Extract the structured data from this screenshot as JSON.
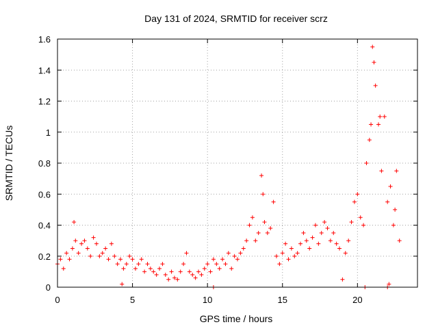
{
  "chart_data": {
    "type": "scatter",
    "title": "Day 131 of 2024, SRMTID for receiver scrz",
    "xlabel": "GPS time / hours",
    "ylabel": "SRMTID / TECUs",
    "xlim": [
      0,
      24
    ],
    "ylim": [
      0,
      1.6
    ],
    "xticks": [
      0,
      5,
      10,
      15,
      20
    ],
    "xtick_labels": [
      "0",
      "5",
      "10",
      "15",
      "20"
    ],
    "yticks": [
      0,
      0.2,
      0.4,
      0.6,
      0.8,
      1,
      1.2,
      1.4,
      1.6
    ],
    "ytick_labels": [
      "0",
      "0.2",
      "0.4",
      "0.6",
      "0.8",
      "1",
      "1.2",
      "1.4",
      "1.6"
    ],
    "grid": true,
    "marker": "+",
    "color": "#ff0000",
    "series": [
      {
        "name": "SRMTID",
        "x": [
          0.0,
          0.2,
          0.4,
          0.6,
          0.8,
          1.0,
          1.1,
          1.2,
          1.4,
          1.6,
          1.8,
          2.0,
          2.2,
          2.4,
          2.6,
          2.8,
          3.0,
          3.2,
          3.4,
          3.6,
          3.8,
          4.0,
          4.2,
          4.3,
          4.4,
          4.6,
          4.8,
          5.0,
          5.2,
          5.4,
          5.6,
          5.8,
          6.0,
          6.2,
          6.4,
          6.6,
          6.8,
          7.0,
          7.2,
          7.4,
          7.6,
          7.8,
          8.0,
          8.2,
          8.4,
          8.6,
          8.8,
          9.0,
          9.2,
          9.4,
          9.6,
          9.8,
          10.0,
          10.2,
          10.4,
          10.6,
          10.8,
          11.0,
          11.2,
          11.4,
          11.6,
          11.8,
          12.0,
          12.2,
          12.4,
          12.6,
          12.8,
          13.0,
          13.2,
          13.4,
          13.6,
          13.7,
          13.8,
          14.0,
          14.2,
          14.4,
          14.6,
          14.8,
          15.0,
          15.2,
          15.4,
          15.6,
          15.8,
          16.0,
          16.2,
          16.4,
          16.6,
          16.8,
          17.0,
          17.2,
          17.4,
          17.6,
          17.8,
          18.0,
          18.2,
          18.4,
          18.6,
          18.8,
          19.0,
          19.2,
          19.4,
          19.6,
          19.8,
          20.0,
          20.2,
          20.4,
          20.6,
          20.8,
          20.9,
          21.0,
          21.1,
          21.2,
          21.4,
          21.5,
          21.6,
          21.8,
          22.0,
          22.1,
          22.2,
          22.4,
          22.5,
          22.6,
          22.8
        ],
        "y": [
          0.15,
          0.18,
          0.12,
          0.22,
          0.18,
          0.25,
          0.42,
          0.3,
          0.22,
          0.28,
          0.3,
          0.25,
          0.2,
          0.32,
          0.28,
          0.2,
          0.22,
          0.25,
          0.18,
          0.28,
          0.2,
          0.15,
          0.18,
          0.02,
          0.12,
          0.15,
          0.2,
          0.18,
          0.12,
          0.15,
          0.18,
          0.1,
          0.15,
          0.12,
          0.1,
          0.08,
          0.12,
          0.15,
          0.08,
          0.05,
          0.1,
          0.06,
          0.05,
          0.1,
          0.15,
          0.22,
          0.1,
          0.08,
          0.06,
          0.1,
          0.08,
          0.12,
          0.15,
          0.1,
          0.18,
          0.15,
          0.12,
          0.18,
          0.15,
          0.22,
          0.12,
          0.2,
          0.18,
          0.22,
          0.25,
          0.3,
          0.4,
          0.45,
          0.3,
          0.35,
          0.72,
          0.6,
          0.42,
          0.35,
          0.38,
          0.55,
          0.2,
          0.15,
          0.22,
          0.28,
          0.18,
          0.25,
          0.2,
          0.22,
          0.28,
          0.35,
          0.3,
          0.25,
          0.32,
          0.4,
          0.28,
          0.35,
          0.42,
          0.38,
          0.3,
          0.35,
          0.28,
          0.25,
          0.05,
          0.22,
          0.3,
          0.42,
          0.55,
          0.6,
          0.45,
          0.4,
          0.8,
          0.95,
          1.05,
          1.55,
          1.45,
          1.3,
          1.05,
          1.1,
          0.75,
          1.1,
          0.55,
          0.02,
          0.65,
          0.4,
          0.5,
          0.75,
          0.3
        ],
        "extra_points_x": [
          10.4,
          20.5,
          22.0
        ],
        "extra_points_y": [
          0.0,
          0.0,
          0.0
        ]
      }
    ]
  }
}
